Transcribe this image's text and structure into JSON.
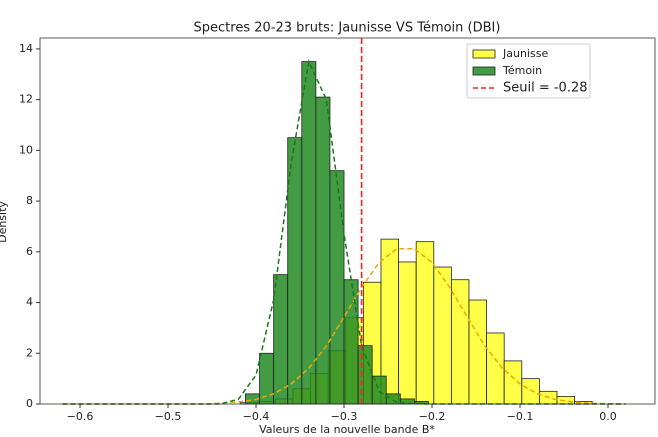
{
  "chart_data": {
    "type": "histogram",
    "title": "Spectres 20-23 bruts: Jaunisse VS Témoin (DBI)",
    "xlabel": "Valeurs de la nouvelle bande B*",
    "ylabel": "Density",
    "xlim": [
      -0.6455,
      0.0534
    ],
    "ylim": [
      0,
      14.43
    ],
    "xticks": [
      {
        "value": -0.6,
        "label": "−0.6"
      },
      {
        "value": -0.5,
        "label": "−0.5"
      },
      {
        "value": -0.4,
        "label": "−0.4"
      },
      {
        "value": -0.3,
        "label": "−0.3"
      },
      {
        "value": -0.2,
        "label": "−0.2"
      },
      {
        "value": -0.1,
        "label": "−0.1"
      },
      {
        "value": 0,
        "label": "0.0"
      }
    ],
    "yticks": [
      0,
      2,
      4,
      6,
      8,
      10,
      12,
      14
    ],
    "legend": "upper right",
    "kde_x": [
      -0.62,
      -0.6,
      -0.58,
      -0.56,
      -0.54,
      -0.52,
      -0.5,
      -0.48,
      -0.46,
      -0.44,
      -0.42,
      -0.4,
      -0.38,
      -0.36,
      -0.34,
      -0.32,
      -0.3,
      -0.28,
      -0.26,
      -0.24,
      -0.22,
      -0.2,
      -0.18,
      -0.16,
      -0.14,
      -0.12,
      -0.1,
      -0.08,
      -0.06,
      -0.04,
      -0.02,
      0,
      0.02
    ],
    "series": [
      {
        "name": "Jaunisse",
        "color": "#ffff00",
        "kde_color": "#f0a800",
        "bins": [
          -0.418,
          -0.398,
          -0.378,
          -0.358,
          -0.338,
          -0.318,
          -0.298,
          -0.278,
          -0.258,
          -0.238,
          -0.218,
          -0.198,
          -0.178,
          -0.158,
          -0.138,
          -0.118,
          -0.098,
          -0.078,
          -0.058,
          -0.038,
          -0.018
        ],
        "values": [
          0.05,
          0.1,
          0.2,
          0.6,
          1.2,
          2.1,
          3.4,
          4.8,
          6.5,
          5.6,
          6.4,
          5.4,
          4.9,
          4.1,
          2.8,
          1.7,
          1.0,
          0.5,
          0.3,
          0.1
        ],
        "kde": [
          0,
          0,
          0,
          0,
          0,
          0,
          0,
          0,
          0,
          0.03,
          0.08,
          0.18,
          0.4,
          0.79,
          1.41,
          2.29,
          3.43,
          4.6,
          5.58,
          6.12,
          6.12,
          5.58,
          4.6,
          3.43,
          2.29,
          1.41,
          0.79,
          0.4,
          0.18,
          0.08,
          0.03,
          0.01,
          0
        ]
      },
      {
        "name": "Témoin",
        "color": "#228b22",
        "kde_color": "#1a7a1a",
        "bins": [
          -0.412,
          -0.396,
          -0.38,
          -0.364,
          -0.348,
          -0.332,
          -0.316,
          -0.3,
          -0.284,
          -0.268,
          -0.252,
          -0.236,
          -0.22,
          -0.204
        ],
        "values": [
          0.4,
          2.0,
          5.1,
          10.5,
          13.5,
          12.1,
          9.2,
          4.9,
          2.3,
          1.1,
          0.4,
          0.2,
          0.1
        ],
        "kde": [
          0,
          0,
          0,
          0,
          0,
          0,
          0,
          0,
          0,
          0,
          0.19,
          1.14,
          4.1,
          9.5,
          13.5,
          12.0,
          6.7,
          2.3,
          0.49,
          0.07,
          0.01,
          0,
          0,
          0,
          0,
          0,
          0,
          0,
          0,
          0,
          0,
          0,
          0
        ]
      }
    ],
    "threshold": {
      "value": -0.28,
      "label": "Seuil = -0.28",
      "color": "#ff2020"
    }
  }
}
